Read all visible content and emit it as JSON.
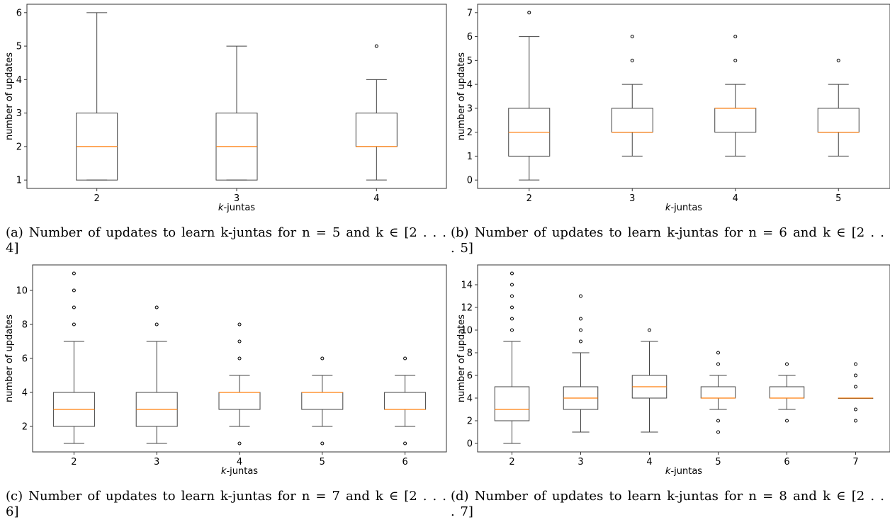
{
  "chart_data": [
    {
      "type": "box",
      "xlabel": "k-juntas",
      "ylabel": "number of updates",
      "ylim": [
        0.75,
        6.25
      ],
      "yticks": [
        1,
        2,
        3,
        4,
        5,
        6
      ],
      "categories": [
        "2",
        "3",
        "4"
      ],
      "boxes": [
        {
          "whislo": 1,
          "q1": 1,
          "med": 2,
          "q3": 3,
          "whishi": 6,
          "fliers": []
        },
        {
          "whislo": 1,
          "q1": 1,
          "med": 2,
          "q3": 3,
          "whishi": 5,
          "fliers": []
        },
        {
          "whislo": 1,
          "q1": 2,
          "med": 2,
          "q3": 3,
          "whishi": 4,
          "fliers": [
            5
          ]
        }
      ],
      "caption": {
        "label": "(a)",
        "text": "Number of updates to learn k-juntas for n = 5 and k ∈ [2 . . . 4]"
      }
    },
    {
      "type": "box",
      "xlabel": "k-juntas",
      "ylabel": "number of updates",
      "ylim": [
        -0.35,
        7.35
      ],
      "yticks": [
        0,
        1,
        2,
        3,
        4,
        5,
        6,
        7
      ],
      "categories": [
        "2",
        "3",
        "4",
        "5"
      ],
      "boxes": [
        {
          "whislo": 0,
          "q1": 1,
          "med": 2,
          "q3": 3,
          "whishi": 6,
          "fliers": [
            7
          ]
        },
        {
          "whislo": 1,
          "q1": 2,
          "med": 2,
          "q3": 3,
          "whishi": 4,
          "fliers": [
            5,
            6
          ]
        },
        {
          "whislo": 1,
          "q1": 2,
          "med": 3,
          "q3": 3,
          "whishi": 4,
          "fliers": [
            5,
            6
          ]
        },
        {
          "whislo": 1,
          "q1": 2,
          "med": 2,
          "q3": 3,
          "whishi": 4,
          "fliers": [
            5
          ]
        }
      ],
      "caption": {
        "label": "(b)",
        "text": "Number of updates to learn k-juntas for n = 6 and k ∈ [2 . . . 5]"
      }
    },
    {
      "type": "box",
      "xlabel": "k-juntas",
      "ylabel": "number of updates",
      "ylim": [
        0.5,
        11.5
      ],
      "yticks": [
        2,
        4,
        6,
        8,
        10
      ],
      "categories": [
        "2",
        "3",
        "4",
        "5",
        "6"
      ],
      "boxes": [
        {
          "whislo": 1,
          "q1": 2,
          "med": 3,
          "q3": 4,
          "whishi": 7,
          "fliers": [
            8,
            9,
            10,
            11
          ]
        },
        {
          "whislo": 1,
          "q1": 2,
          "med": 3,
          "q3": 4,
          "whishi": 7,
          "fliers": [
            8,
            9
          ]
        },
        {
          "whislo": 2,
          "q1": 3,
          "med": 4,
          "q3": 4,
          "whishi": 5,
          "fliers": [
            1,
            6,
            7,
            8
          ]
        },
        {
          "whislo": 2,
          "q1": 3,
          "med": 4,
          "q3": 4,
          "whishi": 5,
          "fliers": [
            1,
            6
          ]
        },
        {
          "whislo": 2,
          "q1": 3,
          "med": 3,
          "q3": 4,
          "whishi": 5,
          "fliers": [
            1,
            6
          ]
        }
      ],
      "caption": {
        "label": "(c)",
        "text": "Number of updates to learn k-juntas for n = 7 and k ∈ [2 . . . 6]"
      }
    },
    {
      "type": "box",
      "xlabel": "k-juntas",
      "ylabel": "number of updates",
      "ylim": [
        -0.75,
        15.75
      ],
      "yticks": [
        0,
        2,
        4,
        6,
        8,
        10,
        12,
        14
      ],
      "categories": [
        "2",
        "3",
        "4",
        "5",
        "6",
        "7"
      ],
      "boxes": [
        {
          "whislo": 0,
          "q1": 2,
          "med": 3,
          "q3": 5,
          "whishi": 9,
          "fliers": [
            10,
            11,
            12,
            13,
            14,
            15
          ]
        },
        {
          "whislo": 1,
          "q1": 3,
          "med": 4,
          "q3": 5,
          "whishi": 8,
          "fliers": [
            9,
            10,
            11,
            13
          ]
        },
        {
          "whislo": 1,
          "q1": 4,
          "med": 5,
          "q3": 6,
          "whishi": 9,
          "fliers": [
            10
          ]
        },
        {
          "whislo": 3,
          "q1": 4,
          "med": 4,
          "q3": 5,
          "whishi": 6,
          "fliers": [
            1,
            2,
            7,
            8
          ]
        },
        {
          "whislo": 3,
          "q1": 4,
          "med": 4,
          "q3": 5,
          "whishi": 6,
          "fliers": [
            2,
            7
          ]
        },
        {
          "whislo": 4,
          "q1": 4,
          "med": 4,
          "q3": 4,
          "whishi": 4,
          "fliers": [
            2,
            3,
            5,
            6,
            7
          ]
        }
      ],
      "caption": {
        "label": "(d)",
        "text": "Number of updates to learn k-juntas for n = 8 and k ∈ [2 . . . 7]"
      }
    }
  ],
  "colors": {
    "box": "#444444",
    "median": "#ff7f0e",
    "frame": "#333333",
    "text": "#000000"
  }
}
